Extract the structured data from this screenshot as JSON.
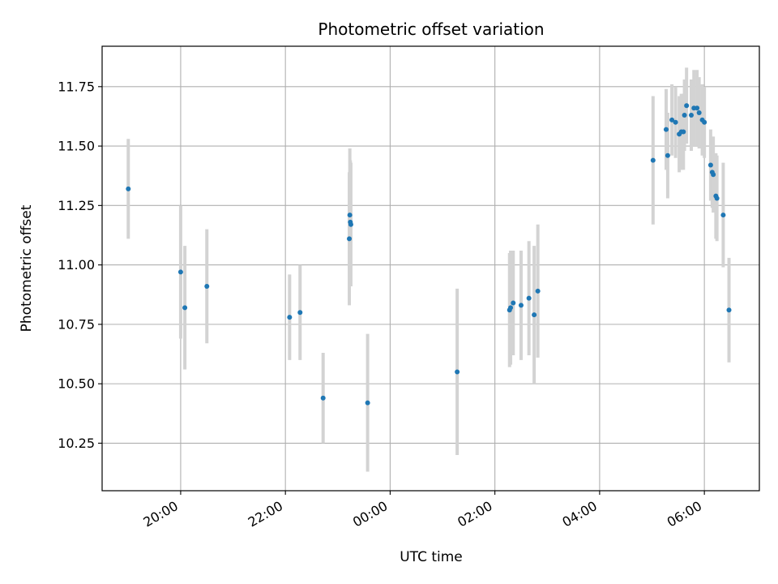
{
  "chart_data": {
    "type": "scatter",
    "title": "Photometric offset variation",
    "xlabel": "UTC time",
    "ylabel": "Photometric offset",
    "x_unit": "hours after 00:00 (negative = previous evening)",
    "xlim": [
      -5.5,
      7.05
    ],
    "ylim": [
      10.05,
      11.92
    ],
    "grid": true,
    "x_ticks": [
      {
        "value": -4,
        "label": "20:00"
      },
      {
        "value": -2,
        "label": "22:00"
      },
      {
        "value": 0,
        "label": "00:00"
      },
      {
        "value": 2,
        "label": "02:00"
      },
      {
        "value": 4,
        "label": "04:00"
      },
      {
        "value": 6,
        "label": "06:00"
      }
    ],
    "y_ticks": [
      {
        "value": 10.25,
        "label": "10.25"
      },
      {
        "value": 10.5,
        "label": "10.50"
      },
      {
        "value": 10.75,
        "label": "10.75"
      },
      {
        "value": 11.0,
        "label": "11.00"
      },
      {
        "value": 11.25,
        "label": "11.25"
      },
      {
        "value": 11.5,
        "label": "11.50"
      },
      {
        "value": 11.75,
        "label": "11.75"
      }
    ],
    "point_color": "#1f77b4",
    "errorbar_color": "#d3d3d3",
    "points": [
      {
        "x": -5.0,
        "y": 11.32,
        "err": 0.21
      },
      {
        "x": -4.0,
        "y": 10.97,
        "err": 0.28
      },
      {
        "x": -3.92,
        "y": 10.82,
        "err": 0.26
      },
      {
        "x": -3.5,
        "y": 10.91,
        "err": 0.24
      },
      {
        "x": -1.92,
        "y": 10.78,
        "err": 0.18
      },
      {
        "x": -1.72,
        "y": 10.8,
        "err": 0.2
      },
      {
        "x": -1.28,
        "y": 10.44,
        "err": 0.19
      },
      {
        "x": -0.78,
        "y": 11.11,
        "err": 0.28
      },
      {
        "x": -0.77,
        "y": 11.21,
        "err": 0.28
      },
      {
        "x": -0.76,
        "y": 11.18,
        "err": 0.26
      },
      {
        "x": -0.75,
        "y": 11.17,
        "err": 0.26
      },
      {
        "x": -0.43,
        "y": 10.42,
        "err": 0.29
      },
      {
        "x": 1.28,
        "y": 10.55,
        "err": 0.35
      },
      {
        "x": 2.28,
        "y": 10.81,
        "err": 0.24
      },
      {
        "x": 2.3,
        "y": 10.82,
        "err": 0.24
      },
      {
        "x": 2.35,
        "y": 10.84,
        "err": 0.22
      },
      {
        "x": 2.5,
        "y": 10.83,
        "err": 0.23
      },
      {
        "x": 2.65,
        "y": 10.86,
        "err": 0.24
      },
      {
        "x": 2.75,
        "y": 10.79,
        "err": 0.29
      },
      {
        "x": 2.82,
        "y": 10.89,
        "err": 0.28
      },
      {
        "x": 5.02,
        "y": 11.44,
        "err": 0.27
      },
      {
        "x": 5.27,
        "y": 11.57,
        "err": 0.17
      },
      {
        "x": 5.3,
        "y": 11.46,
        "err": 0.18
      },
      {
        "x": 5.38,
        "y": 11.61,
        "err": 0.15
      },
      {
        "x": 5.45,
        "y": 11.6,
        "err": 0.15
      },
      {
        "x": 5.52,
        "y": 11.55,
        "err": 0.16
      },
      {
        "x": 5.56,
        "y": 11.56,
        "err": 0.16
      },
      {
        "x": 5.6,
        "y": 11.56,
        "err": 0.16
      },
      {
        "x": 5.62,
        "y": 11.63,
        "err": 0.15
      },
      {
        "x": 5.66,
        "y": 11.67,
        "err": 0.16
      },
      {
        "x": 5.75,
        "y": 11.63,
        "err": 0.15
      },
      {
        "x": 5.8,
        "y": 11.66,
        "err": 0.16
      },
      {
        "x": 5.86,
        "y": 11.66,
        "err": 0.16
      },
      {
        "x": 5.9,
        "y": 11.64,
        "err": 0.15
      },
      {
        "x": 5.96,
        "y": 11.61,
        "err": 0.15
      },
      {
        "x": 6.0,
        "y": 11.6,
        "err": 0.15
      },
      {
        "x": 6.12,
        "y": 11.42,
        "err": 0.15
      },
      {
        "x": 6.15,
        "y": 11.39,
        "err": 0.15
      },
      {
        "x": 6.17,
        "y": 11.38,
        "err": 0.16
      },
      {
        "x": 6.22,
        "y": 11.29,
        "err": 0.18
      },
      {
        "x": 6.24,
        "y": 11.28,
        "err": 0.18
      },
      {
        "x": 6.36,
        "y": 11.21,
        "err": 0.22
      },
      {
        "x": 6.47,
        "y": 10.81,
        "err": 0.22
      }
    ]
  }
}
